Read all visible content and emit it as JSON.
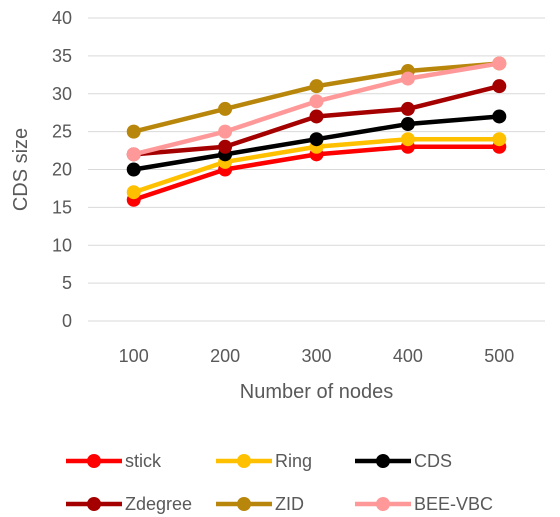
{
  "chart_data": {
    "type": "line",
    "xlabel": "Number of nodes",
    "ylabel": "CDS size",
    "categories": [
      "100",
      "200",
      "300",
      "400",
      "500"
    ],
    "ylim": [
      0,
      40
    ],
    "yticks": [
      0,
      5,
      10,
      15,
      20,
      25,
      30,
      35,
      40
    ],
    "grid": true,
    "legend_position": "bottom",
    "series": [
      {
        "name": "stick",
        "color": "#ff0000",
        "values": [
          16,
          20,
          22,
          23,
          23
        ]
      },
      {
        "name": "Ring",
        "color": "#ffc000",
        "values": [
          17,
          21,
          23,
          24,
          24
        ]
      },
      {
        "name": "CDS",
        "color": "#000000",
        "values": [
          20,
          22,
          24,
          26,
          27
        ]
      },
      {
        "name": "Zdegree",
        "color": "#a50000",
        "values": [
          22,
          23,
          27,
          28,
          31
        ]
      },
      {
        "name": "ZID",
        "color": "#b8860b",
        "values": [
          25,
          28,
          31,
          33,
          34
        ]
      },
      {
        "name": "BEE-VBC",
        "color": "#ff9999",
        "values": [
          22,
          25,
          29,
          32,
          34
        ]
      }
    ]
  }
}
